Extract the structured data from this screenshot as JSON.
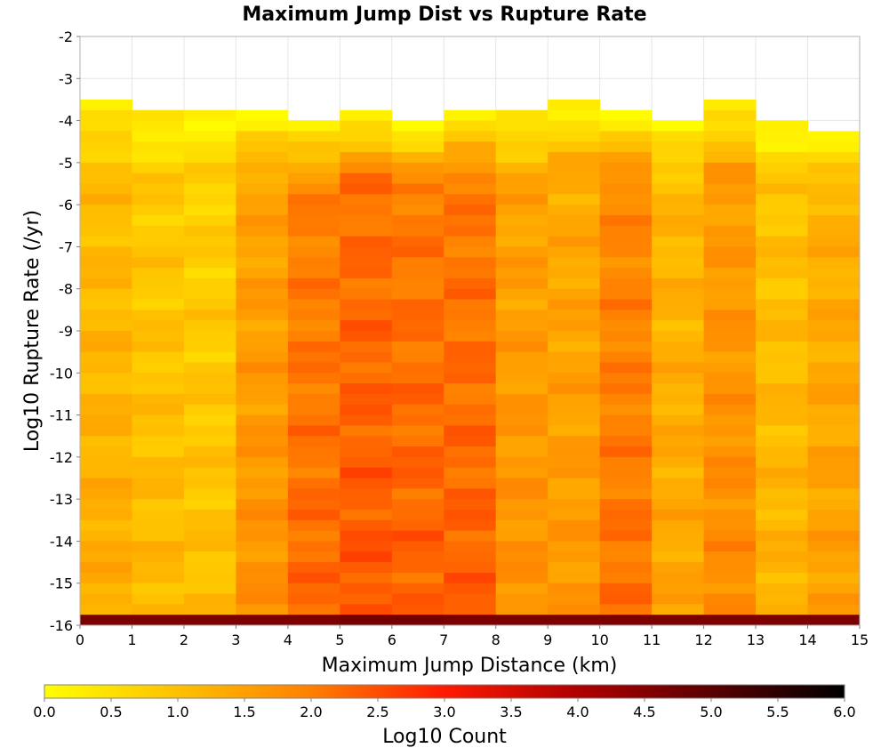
{
  "chart_data": {
    "type": "heatmap",
    "title": "Maximum Jump Dist vs Rupture Rate",
    "xlabel": "Maximum Jump Distance (km)",
    "ylabel": "Log10 Rupture Rate (/yr)",
    "xlim": [
      0,
      15
    ],
    "ylim": [
      -16,
      -2
    ],
    "x_ticks": [
      "0",
      "1",
      "2",
      "3",
      "4",
      "5",
      "6",
      "7",
      "8",
      "9",
      "10",
      "11",
      "12",
      "13",
      "14",
      "15"
    ],
    "y_ticks": [
      "-2",
      "-3",
      "-4",
      "-5",
      "-6",
      "-7",
      "-8",
      "-9",
      "-10",
      "-11",
      "-12",
      "-13",
      "-14",
      "-15",
      "-16"
    ],
    "x_bin_edges": [
      0,
      1,
      2,
      3,
      4,
      5,
      6,
      7,
      8,
      9,
      10,
      11,
      12,
      13,
      14,
      15
    ],
    "y_bin_width": 0.25,
    "top_bin_top": [
      -3.5,
      -3.75,
      -3.75,
      -3.75,
      -4.0,
      -3.75,
      -4.0,
      -3.75,
      -3.75,
      -3.5,
      -3.75,
      -4.0,
      -3.5,
      -4.0,
      -4.25
    ],
    "column_level_log10_count": [
      1.0,
      0.8,
      0.7,
      1.4,
      1.9,
      2.1,
      2.0,
      2.0,
      1.4,
      1.3,
      1.8,
      1.1,
      1.5,
      0.9,
      1.2
    ],
    "bottom_row_log10_count": [
      4.6,
      4.6,
      4.6,
      4.6,
      4.6,
      4.7,
      4.7,
      4.6,
      4.6,
      4.6,
      4.6,
      4.6,
      4.6,
      4.6,
      4.6
    ],
    "colorbar": {
      "label": "Log10 Count",
      "range": [
        0.0,
        6.0
      ],
      "ticks": [
        "0.0",
        "0.5",
        "1.0",
        "1.5",
        "2.0",
        "2.5",
        "3.0",
        "3.5",
        "4.0",
        "4.5",
        "5.0",
        "5.5",
        "6.0"
      ],
      "stops": [
        {
          "value": 0.0,
          "color": "#ffff00"
        },
        {
          "value": 1.0,
          "color": "#ffc000"
        },
        {
          "value": 2.0,
          "color": "#ff8000"
        },
        {
          "value": 3.0,
          "color": "#ff1a00"
        },
        {
          "value": 4.0,
          "color": "#b00000"
        },
        {
          "value": 5.0,
          "color": "#5a0000"
        },
        {
          "value": 6.0,
          "color": "#000000"
        }
      ]
    },
    "grid": true,
    "legend": "bottom"
  }
}
